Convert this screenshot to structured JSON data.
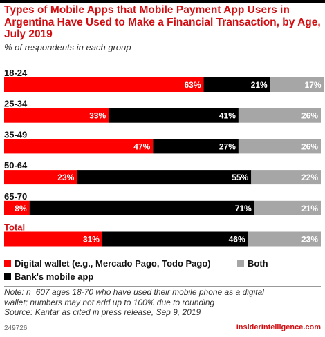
{
  "header": {
    "title": "Types of Mobile Apps that Mobile Payment App Users in Argentina Have Used to Make a Financial Transaction, by Age, July 2019",
    "subtitle": "% of respondents in each group"
  },
  "chart_data": {
    "type": "bar",
    "orientation": "horizontal",
    "stacked": true,
    "value_unit": "%",
    "xlim": [
      0,
      100
    ],
    "grid": false,
    "legend_position": "bottom",
    "categories": [
      "18-24",
      "25-34",
      "35-49",
      "50-64",
      "65-70",
      "Total"
    ],
    "series": [
      {
        "name": "Digital wallet (e.g., Mercado Pago, Todo Pago)",
        "color": "#ff0000",
        "values": [
          63,
          33,
          47,
          23,
          8,
          31
        ]
      },
      {
        "name": "Bank's mobile app",
        "color": "#000000",
        "values": [
          21,
          41,
          27,
          55,
          71,
          46
        ]
      },
      {
        "name": "Both",
        "color": "#a6a6a6",
        "values": [
          17,
          26,
          26,
          22,
          21,
          23
        ]
      }
    ],
    "highlight_category_color": "#d10f12"
  },
  "colors": {
    "title": "#d10f12",
    "brand": "#d10f12"
  },
  "footer": {
    "note_line1": "Note: n=607 ages 18-70 who have used their mobile phone as a digital",
    "note_line2": "wallet; numbers may not add up to 100% due to rounding",
    "source": "Source: Kantar as cited in press release, Sep 9, 2019",
    "chart_id": "249726",
    "brand": "InsiderIntelligence.com"
  }
}
